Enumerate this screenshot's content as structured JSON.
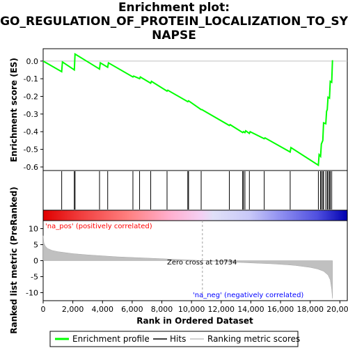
{
  "title_lines": [
    "Enrichment plot:",
    "GO_REGULATION_OF_PROTEIN_LOCALIZATION_TO_SY",
    "NAPSE"
  ],
  "chart_data": {
    "type": "line",
    "title": "Enrichment plot: GO_REGULATION_OF_PROTEIN_LOCALIZATION_TO_SYNAPSE",
    "xlabel": "Rank in Ordered Dataset",
    "es_ylabel": "Enrichment score (ES)",
    "metric_ylabel": "Ranked list metric (PreRanked)",
    "xlim": [
      0,
      20500
    ],
    "es_ylim": [
      -0.62,
      0.07
    ],
    "metric_ylim": [
      -12.5,
      12.5
    ],
    "x_ticks": [
      "0",
      "2,000",
      "4,000",
      "6,000",
      "8,000",
      "10,000",
      "12,000",
      "14,000",
      "16,000",
      "18,000",
      "20,000"
    ],
    "x_tick_values": [
      0,
      2000,
      4000,
      6000,
      8000,
      10000,
      12000,
      14000,
      16000,
      18000,
      20000
    ],
    "es_ticks": [
      "0.0",
      "-0.1",
      "-0.2",
      "-0.3",
      "-0.4",
      "-0.5",
      "-0.6"
    ],
    "es_tick_values": [
      0.0,
      -0.1,
      -0.2,
      -0.3,
      -0.4,
      -0.5,
      -0.6
    ],
    "metric_ticks": [
      "10",
      "5",
      "0",
      "-5",
      "-10"
    ],
    "metric_tick_values": [
      10,
      5,
      0,
      -5,
      -10
    ],
    "series": [
      {
        "name": "Enrichment profile",
        "color": "#00ff00",
        "x": [
          0,
          1250,
          1300,
          2100,
          2150,
          3800,
          3850,
          4350,
          4400,
          6050,
          6100,
          6500,
          6550,
          7250,
          7300,
          8350,
          8400,
          9750,
          9800,
          10650,
          10700,
          12550,
          12600,
          13450,
          13500,
          13600,
          13650,
          13900,
          13950,
          14900,
          14950,
          16650,
          16700,
          18550,
          18600,
          18700,
          18750,
          18850,
          18900,
          19050,
          19100,
          19150,
          19200,
          19300,
          19350,
          19450,
          19500
        ],
        "y": [
          0.0,
          -0.06,
          -0.005,
          -0.05,
          0.04,
          -0.045,
          -0.01,
          -0.035,
          -0.01,
          -0.09,
          -0.085,
          -0.1,
          -0.09,
          -0.125,
          -0.115,
          -0.17,
          -0.165,
          -0.23,
          -0.225,
          -0.275,
          -0.275,
          -0.365,
          -0.36,
          -0.405,
          -0.4,
          -0.405,
          -0.395,
          -0.41,
          -0.4,
          -0.44,
          -0.435,
          -0.515,
          -0.49,
          -0.59,
          -0.53,
          -0.54,
          -0.47,
          -0.45,
          -0.35,
          -0.355,
          -0.285,
          -0.275,
          -0.205,
          -0.21,
          -0.115,
          -0.12,
          0.005
        ]
      }
    ],
    "hits": [
      1250,
      2100,
      2150,
      3800,
      4350,
      6050,
      6500,
      7250,
      8350,
      9750,
      9800,
      10650,
      12550,
      13450,
      13500,
      13600,
      13900,
      14900,
      16650,
      18550,
      18700,
      18750,
      18850,
      18900,
      19050,
      19150,
      19200,
      19300,
      19350,
      19450
    ],
    "metric_profile": {
      "x": [
        0,
        50,
        150,
        300,
        600,
        1000,
        2000,
        3000,
        4000,
        5000,
        6000,
        7000,
        8000,
        9000,
        10000,
        10734,
        11500,
        12500,
        13500,
        14500,
        15500,
        16500,
        17000,
        17500,
        18000,
        18500,
        18900,
        19200,
        19350,
        19450,
        19500
      ],
      "y": [
        7.8,
        5.5,
        4.5,
        3.8,
        3.2,
        2.8,
        2.2,
        1.8,
        1.5,
        1.2,
        1.0,
        0.8,
        0.6,
        0.4,
        0.2,
        0.0,
        -0.2,
        -0.4,
        -0.6,
        -0.8,
        -1.0,
        -1.3,
        -1.5,
        -1.8,
        -2.1,
        -2.6,
        -3.3,
        -4.5,
        -6.0,
        -9.0,
        -11.8
      ]
    },
    "zero_cross": 10734,
    "annotations": {
      "pos_label": "'na_pos' (positively correlated)",
      "neg_label": "'na_neg' (negatively correlated)",
      "zero_label": "Zero cross at 10734"
    },
    "colors": {
      "pos_label": "#ff0000",
      "neg_label": "#0000ff",
      "hits": "#000000",
      "metric_fill": "#c0c0c0",
      "zero_line": "#a0a0a0"
    },
    "legend": {
      "placement": "bottom",
      "items": [
        "Enrichment profile",
        "Hits",
        "Ranking metric scores"
      ]
    }
  }
}
